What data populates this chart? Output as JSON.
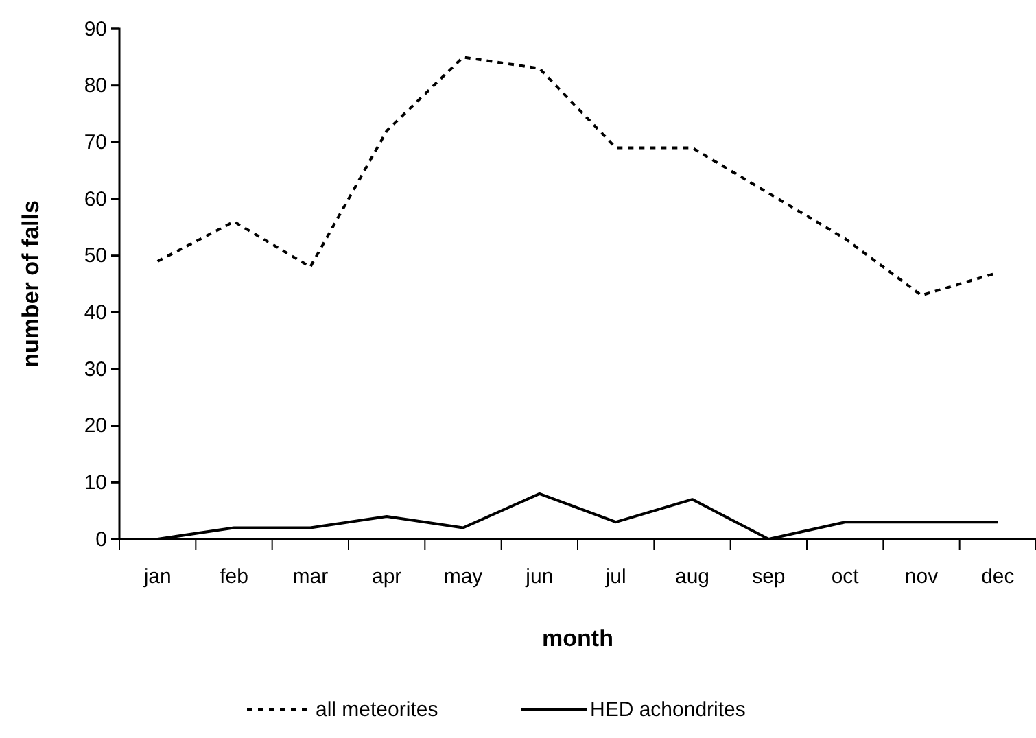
{
  "chart_data": {
    "type": "line",
    "xlabel": "month",
    "ylabel": "number of falls",
    "categories": [
      "jan",
      "feb",
      "mar",
      "apr",
      "may",
      "jun",
      "jul",
      "aug",
      "sep",
      "oct",
      "nov",
      "dec"
    ],
    "ylim": [
      0,
      90
    ],
    "yticks": [
      0,
      10,
      20,
      30,
      40,
      50,
      60,
      70,
      80,
      90
    ],
    "grid": false,
    "legend": "bottom",
    "series": [
      {
        "name": "all meteorites",
        "color": "#000000",
        "line_style": "dashed",
        "values": [
          49,
          56,
          48,
          72,
          85,
          83,
          69,
          69,
          61,
          53,
          43,
          47
        ]
      },
      {
        "name": "HED achondrites",
        "color": "#000000",
        "line_style": "solid",
        "values": [
          0,
          2,
          2,
          4,
          2,
          8,
          3,
          7,
          0,
          3,
          3,
          3
        ]
      }
    ]
  }
}
